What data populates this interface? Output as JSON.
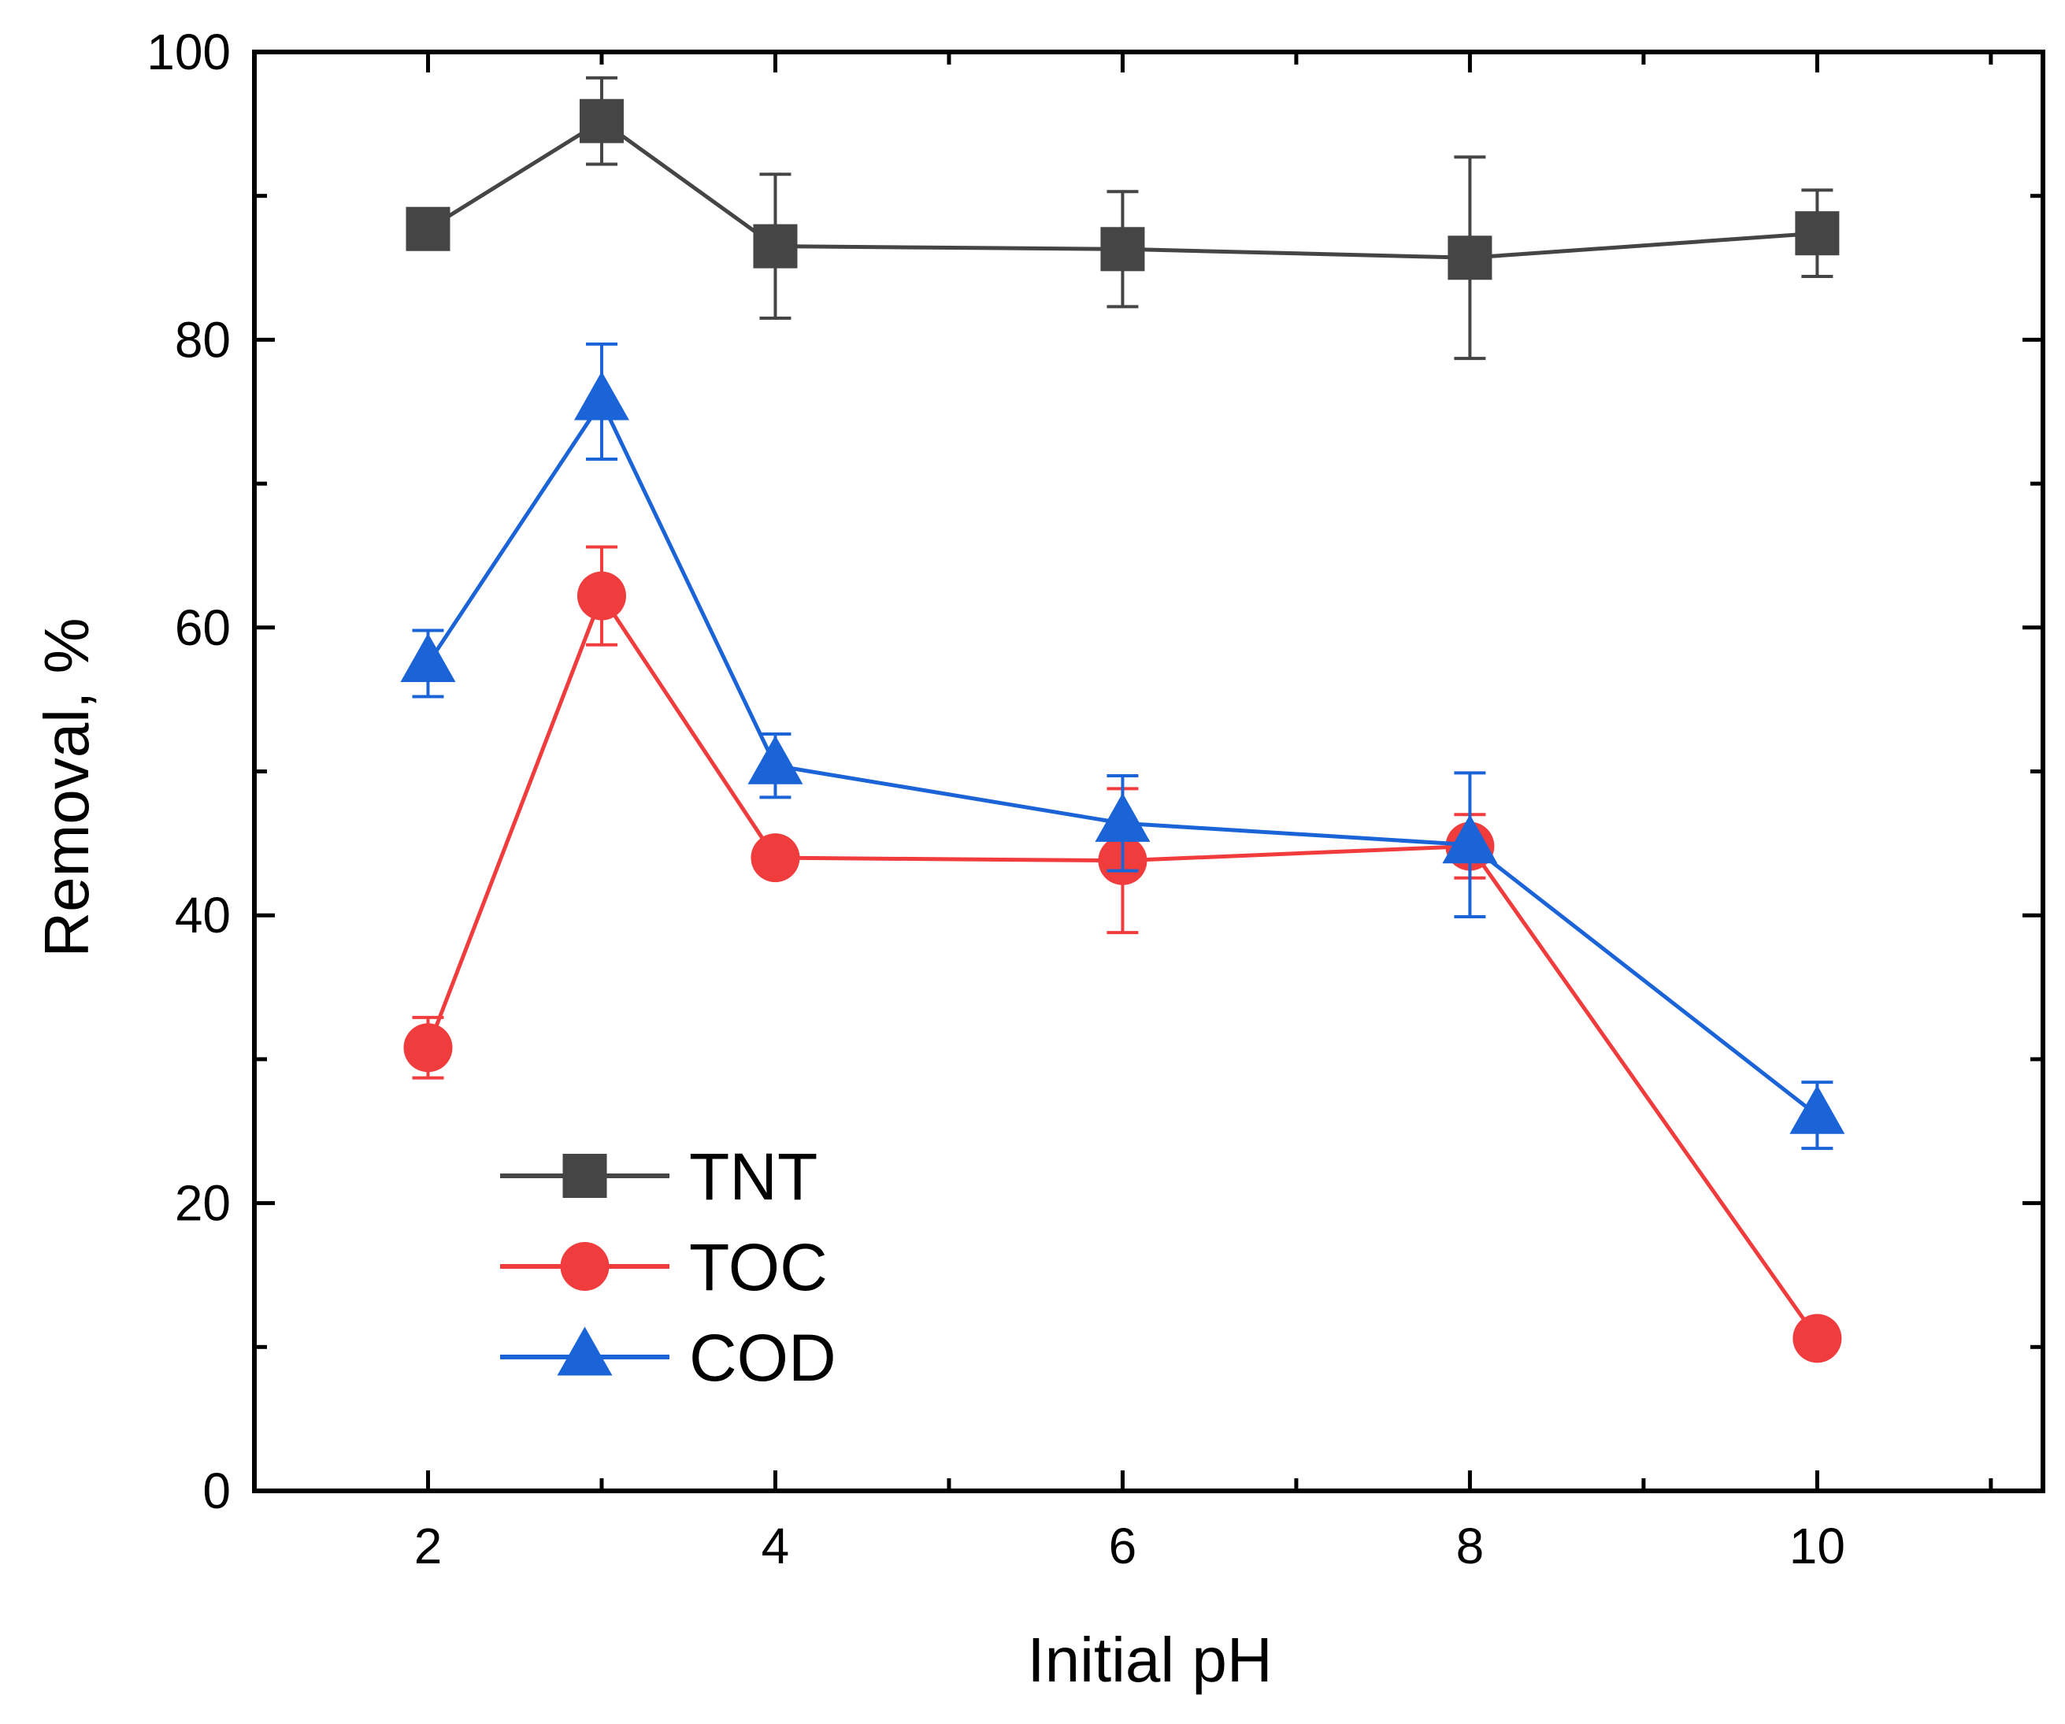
{
  "chart_data": {
    "type": "line",
    "title": "",
    "xlabel": "Initial pH",
    "ylabel": "Removal, %",
    "xlim": [
      1,
      11.3
    ],
    "ylim": [
      0,
      100
    ],
    "x_ticks": [
      2,
      4,
      6,
      8,
      10
    ],
    "x_tick_labels": [
      "2",
      "4",
      "6",
      "8",
      "10"
    ],
    "x_minor_ticks": [
      3,
      5,
      7,
      9,
      11
    ],
    "y_ticks": [
      0,
      20,
      40,
      60,
      80,
      100
    ],
    "y_tick_labels": [
      "0",
      "20",
      "40",
      "60",
      "80",
      "100"
    ],
    "y_minor_ticks": [
      10,
      30,
      50,
      70,
      90
    ],
    "grid": false,
    "legend_position": "bottom-left",
    "x": [
      2,
      3,
      4,
      6,
      8,
      10
    ],
    "series": [
      {
        "name": "TNT",
        "label": "TNT",
        "color": "#454545",
        "marker": "square",
        "values": [
          87.7,
          95.2,
          86.5,
          86.3,
          85.7,
          87.4
        ],
        "errors": [
          0.8,
          3.0,
          5.0,
          4.0,
          7.0,
          3.0
        ]
      },
      {
        "name": "TOC",
        "label": "TOC",
        "color": "#f03c3c",
        "marker": "circle",
        "values": [
          30.8,
          62.2,
          44.0,
          43.8,
          44.8,
          10.6
        ],
        "errors": [
          2.1,
          3.4,
          0.0,
          5.0,
          2.2,
          0.0
        ]
      },
      {
        "name": "COD",
        "label": "COD",
        "color": "#1a64d8",
        "marker": "triangle",
        "values": [
          57.5,
          75.7,
          50.4,
          46.4,
          44.9,
          26.1
        ],
        "errors": [
          2.3,
          4.0,
          2.2,
          3.3,
          5.0,
          2.3
        ]
      }
    ]
  }
}
